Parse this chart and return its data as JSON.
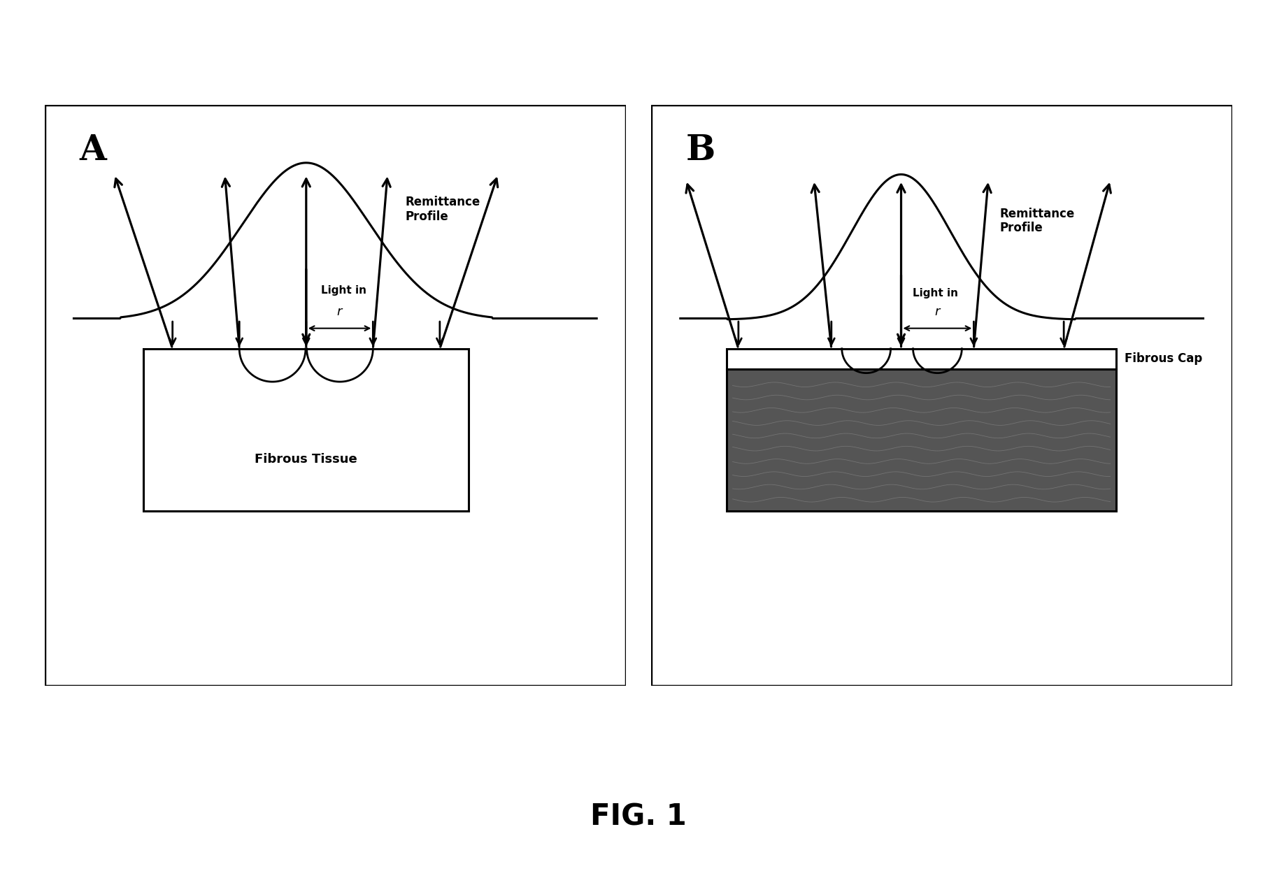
{
  "fig_width": 18.26,
  "fig_height": 12.56,
  "bg_color": "#ffffff",
  "panel_A_label": "A",
  "panel_B_label": "B",
  "remittance_label": "Remittance\nProfile",
  "light_in_label": "Light in",
  "r_label": "r",
  "fibrous_tissue_label": "Fibrous Tissue",
  "fibrous_cap_label": "Fibrous Cap",
  "fig_label": "FIG. 1",
  "panel_border_color": "#000000",
  "arrow_color": "#000000",
  "curve_color": "#000000",
  "font_color": "#000000",
  "dark_fill_color": "#555555"
}
